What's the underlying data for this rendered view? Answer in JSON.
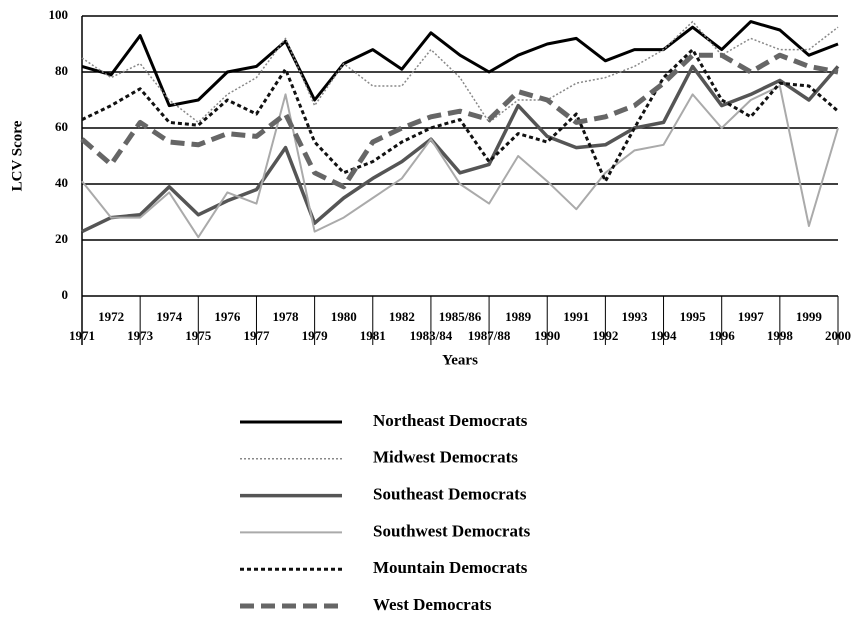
{
  "chart_data": {
    "type": "line",
    "y_label": "LCV Score",
    "x_label": "Years",
    "categories": [
      "1971",
      "1972",
      "1973",
      "1974",
      "1975",
      "1976",
      "1977",
      "1978",
      "1979",
      "1980",
      "1981",
      "1982",
      "1983/84",
      "1985/86",
      "1987/88",
      "1989",
      "1990",
      "1991",
      "1992",
      "1993",
      "1994",
      "1995",
      "1996",
      "1997",
      "1998",
      "1999",
      "2000"
    ],
    "ylim": [
      0,
      100
    ],
    "yticks": [
      0,
      20,
      40,
      60,
      80,
      100
    ],
    "grid": true,
    "series": [
      {
        "name": "Northeast Democrats",
        "color": "#000000",
        "width": 3,
        "dash": "none",
        "values": [
          82,
          79,
          93,
          68,
          70,
          80,
          82,
          91,
          70,
          83,
          88,
          81,
          94,
          86,
          80,
          86,
          90,
          92,
          84,
          88,
          88,
          96,
          88,
          98,
          95,
          86,
          90
        ]
      },
      {
        "name": "Midwest Democrats",
        "color": "#888888",
        "width": 1.5,
        "dash": "2,2",
        "values": [
          85,
          78,
          83,
          70,
          62,
          72,
          78,
          92,
          68,
          83,
          75,
          75,
          88,
          78,
          62,
          70,
          70,
          76,
          78,
          82,
          88,
          98,
          86,
          92,
          88,
          88,
          96
        ]
      },
      {
        "name": "Southeast Democrats",
        "color": "#555555",
        "width": 3.5,
        "dash": "none",
        "values": [
          23,
          28,
          29,
          39,
          29,
          34,
          38,
          53,
          26,
          35,
          42,
          48,
          56,
          44,
          47,
          68,
          57,
          53,
          54,
          60,
          62,
          82,
          68,
          72,
          77,
          70,
          82
        ]
      },
      {
        "name": "Southwest Democrats",
        "color": "#aaaaaa",
        "width": 2,
        "dash": "none",
        "values": [
          41,
          28,
          28,
          37,
          21,
          37,
          33,
          72,
          23,
          28,
          35,
          42,
          56,
          40,
          33,
          50,
          41,
          31,
          44,
          52,
          54,
          72,
          60,
          70,
          75,
          25,
          60
        ]
      },
      {
        "name": "Mountain Democrats",
        "color": "#111111",
        "width": 3,
        "dash": "4,3",
        "values": [
          63,
          68,
          74,
          62,
          61,
          70,
          65,
          81,
          55,
          44,
          48,
          55,
          60,
          63,
          48,
          58,
          55,
          65,
          41,
          60,
          78,
          88,
          70,
          64,
          76,
          75,
          66
        ]
      },
      {
        "name": "West Democrats",
        "color": "#666666",
        "width": 5,
        "dash": "14,7",
        "values": [
          56,
          47,
          62,
          55,
          54,
          58,
          57,
          65,
          44,
          39,
          55,
          60,
          64,
          66,
          63,
          73,
          70,
          62,
          64,
          68,
          76,
          86,
          86,
          80,
          86,
          82,
          80
        ]
      }
    ]
  }
}
